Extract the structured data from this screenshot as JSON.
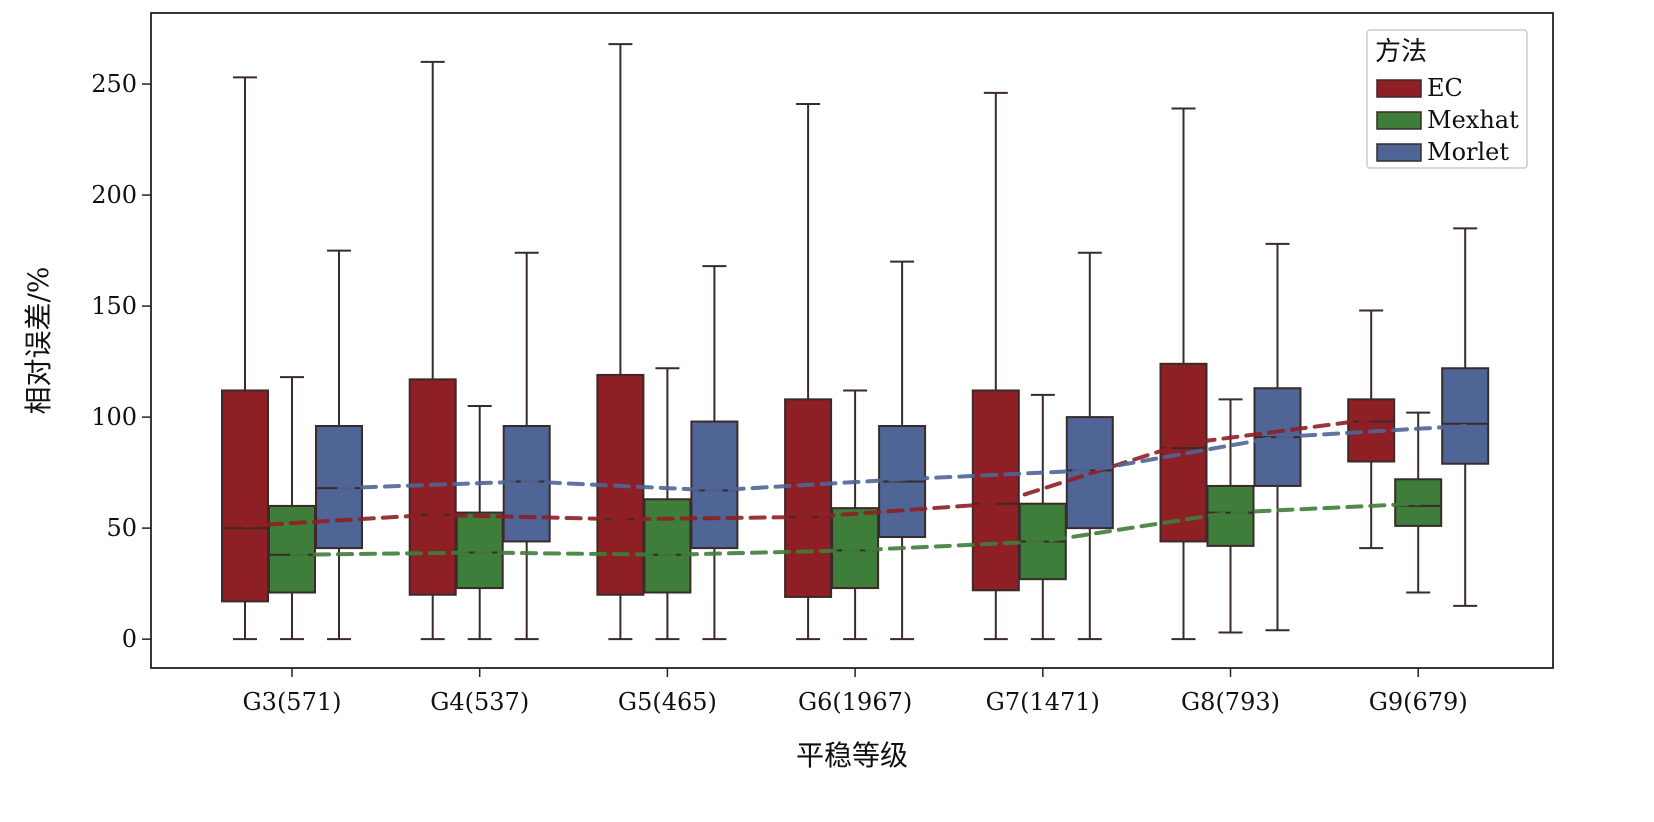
{
  "chart_data": {
    "type": "box",
    "title": "",
    "xlabel": "平稳等级",
    "ylabel": "相对误差/%",
    "ylim": [
      -13,
      282
    ],
    "yticks": [
      0,
      50,
      100,
      150,
      200,
      250
    ],
    "categories": [
      "G3(571)",
      "G4(537)",
      "G5(465)",
      "G6(1967)",
      "G7(1471)",
      "G8(793)",
      "G9(679)"
    ],
    "legend": {
      "title": "方法",
      "position": "top-right"
    },
    "grid": false,
    "series": [
      {
        "name": "EC",
        "color": "#8e1f24",
        "boxes": [
          {
            "min": 0,
            "q1": 17,
            "median": 50,
            "q3": 112,
            "max": 253
          },
          {
            "min": 0,
            "q1": 20,
            "median": 56,
            "q3": 117,
            "max": 260
          },
          {
            "min": 0,
            "q1": 20,
            "median": 54,
            "q3": 119,
            "max": 268
          },
          {
            "min": 0,
            "q1": 19,
            "median": 55,
            "q3": 108,
            "max": 241
          },
          {
            "min": 0,
            "q1": 22,
            "median": 61,
            "q3": 112,
            "max": 246
          },
          {
            "min": 0,
            "q1": 44,
            "median": 86,
            "q3": 124,
            "max": 239
          },
          {
            "min": 41,
            "q1": 80,
            "median": 98,
            "q3": 108,
            "max": 148
          }
        ],
        "trend": [
          51,
          56,
          54,
          55,
          61,
          88,
          99
        ]
      },
      {
        "name": "Mexhat",
        "color": "#3f7d3a",
        "boxes": [
          {
            "min": 0,
            "q1": 21,
            "median": 38,
            "q3": 60,
            "max": 118
          },
          {
            "min": 0,
            "q1": 23,
            "median": 39,
            "q3": 57,
            "max": 105
          },
          {
            "min": 0,
            "q1": 21,
            "median": 38,
            "q3": 63,
            "max": 122
          },
          {
            "min": 0,
            "q1": 23,
            "median": 40,
            "q3": 59,
            "max": 112
          },
          {
            "min": 0,
            "q1": 27,
            "median": 44,
            "q3": 61,
            "max": 110
          },
          {
            "min": 3,
            "q1": 42,
            "median": 57,
            "q3": 69,
            "max": 108
          },
          {
            "min": 21,
            "q1": 51,
            "median": 60,
            "q3": 72,
            "max": 102
          }
        ],
        "trend": [
          38,
          39,
          38,
          40,
          44,
          57,
          61
        ]
      },
      {
        "name": "Morlet",
        "color": "#4f6595",
        "boxes": [
          {
            "min": 0,
            "q1": 41,
            "median": 68,
            "q3": 96,
            "max": 175
          },
          {
            "min": 0,
            "q1": 44,
            "median": 71,
            "q3": 96,
            "max": 174
          },
          {
            "min": 0,
            "q1": 41,
            "median": 67,
            "q3": 98,
            "max": 168
          },
          {
            "min": 0,
            "q1": 46,
            "median": 71,
            "q3": 96,
            "max": 170
          },
          {
            "min": 0,
            "q1": 50,
            "median": 76,
            "q3": 100,
            "max": 174
          },
          {
            "min": 4,
            "q1": 69,
            "median": 91,
            "q3": 113,
            "max": 178
          },
          {
            "min": 15,
            "q1": 79,
            "median": 97,
            "q3": 122,
            "max": 185
          }
        ],
        "trend": [
          68,
          71,
          67,
          72,
          76,
          91,
          96
        ]
      }
    ]
  }
}
